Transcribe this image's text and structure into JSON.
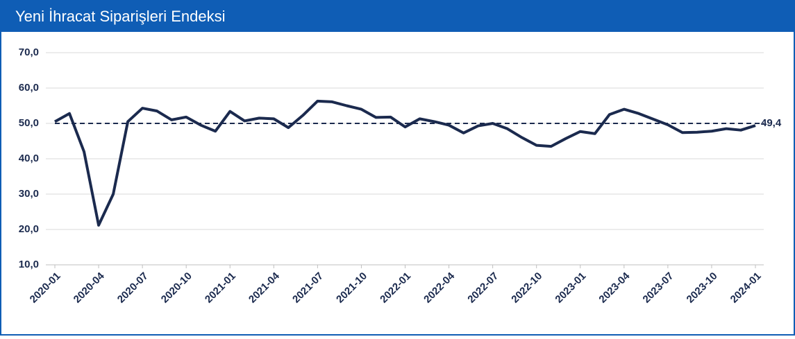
{
  "chart_data": {
    "type": "line",
    "title": "Yeni İhracat Siparişleri Endeksi",
    "categories": [
      "2020-01",
      null,
      null,
      "2020-04",
      null,
      null,
      "2020-07",
      null,
      null,
      "2020-10",
      null,
      null,
      "2021-01",
      null,
      null,
      "2021-04",
      null,
      null,
      "2021-07",
      null,
      null,
      "2021-10",
      null,
      null,
      "2022-01",
      null,
      null,
      "2022-04",
      null,
      null,
      "2022-07",
      null,
      null,
      "2022-10",
      null,
      null,
      "2023-01",
      null,
      null,
      "2023-04",
      null,
      null,
      "2023-07",
      null,
      null,
      "2023-10",
      null,
      null,
      "2024-01"
    ],
    "series": [
      {
        "color": "#1b2a4e",
        "values": [
          50.5,
          52.8,
          42,
          21.2,
          30,
          50.5,
          54.3,
          53.5,
          51,
          51.8,
          49.5,
          47.8,
          53.4,
          50.7,
          51.5,
          51.3,
          48.8,
          52.3,
          56.3,
          56.1,
          55,
          54,
          51.7,
          51.8,
          49,
          51.3,
          50.5,
          49.5,
          47.3,
          49.3,
          50,
          48.5,
          46,
          43.8,
          43.5,
          45.7,
          47.7,
          47.1,
          52.5,
          54,
          52.8,
          51.2,
          49.6,
          47.4,
          47.5,
          47.8,
          48.5,
          48.1,
          49.4
        ],
        "value_labels": [
          null,
          null,
          null,
          null,
          null,
          null,
          null,
          null,
          null,
          null,
          null,
          null,
          null,
          null,
          null,
          null,
          null,
          null,
          null,
          null,
          null,
          null,
          null,
          null,
          null,
          null,
          null,
          null,
          null,
          null,
          null,
          null,
          null,
          null,
          null,
          null,
          null,
          null,
          null,
          null,
          null,
          null,
          null,
          null,
          null,
          null,
          null,
          null,
          "49,4"
        ]
      }
    ],
    "ylim": [
      10,
      70
    ],
    "yticks": [
      {
        "value": 10,
        "label": "10,0"
      },
      {
        "value": 20,
        "label": "20,0"
      },
      {
        "value": 30,
        "label": "30,0"
      },
      {
        "value": 40,
        "label": "40,0"
      },
      {
        "value": 50,
        "label": "50,0"
      },
      {
        "value": 60,
        "label": "60,0"
      },
      {
        "value": 70,
        "label": "70,0"
      }
    ],
    "reference_line": 50,
    "grid": true
  }
}
